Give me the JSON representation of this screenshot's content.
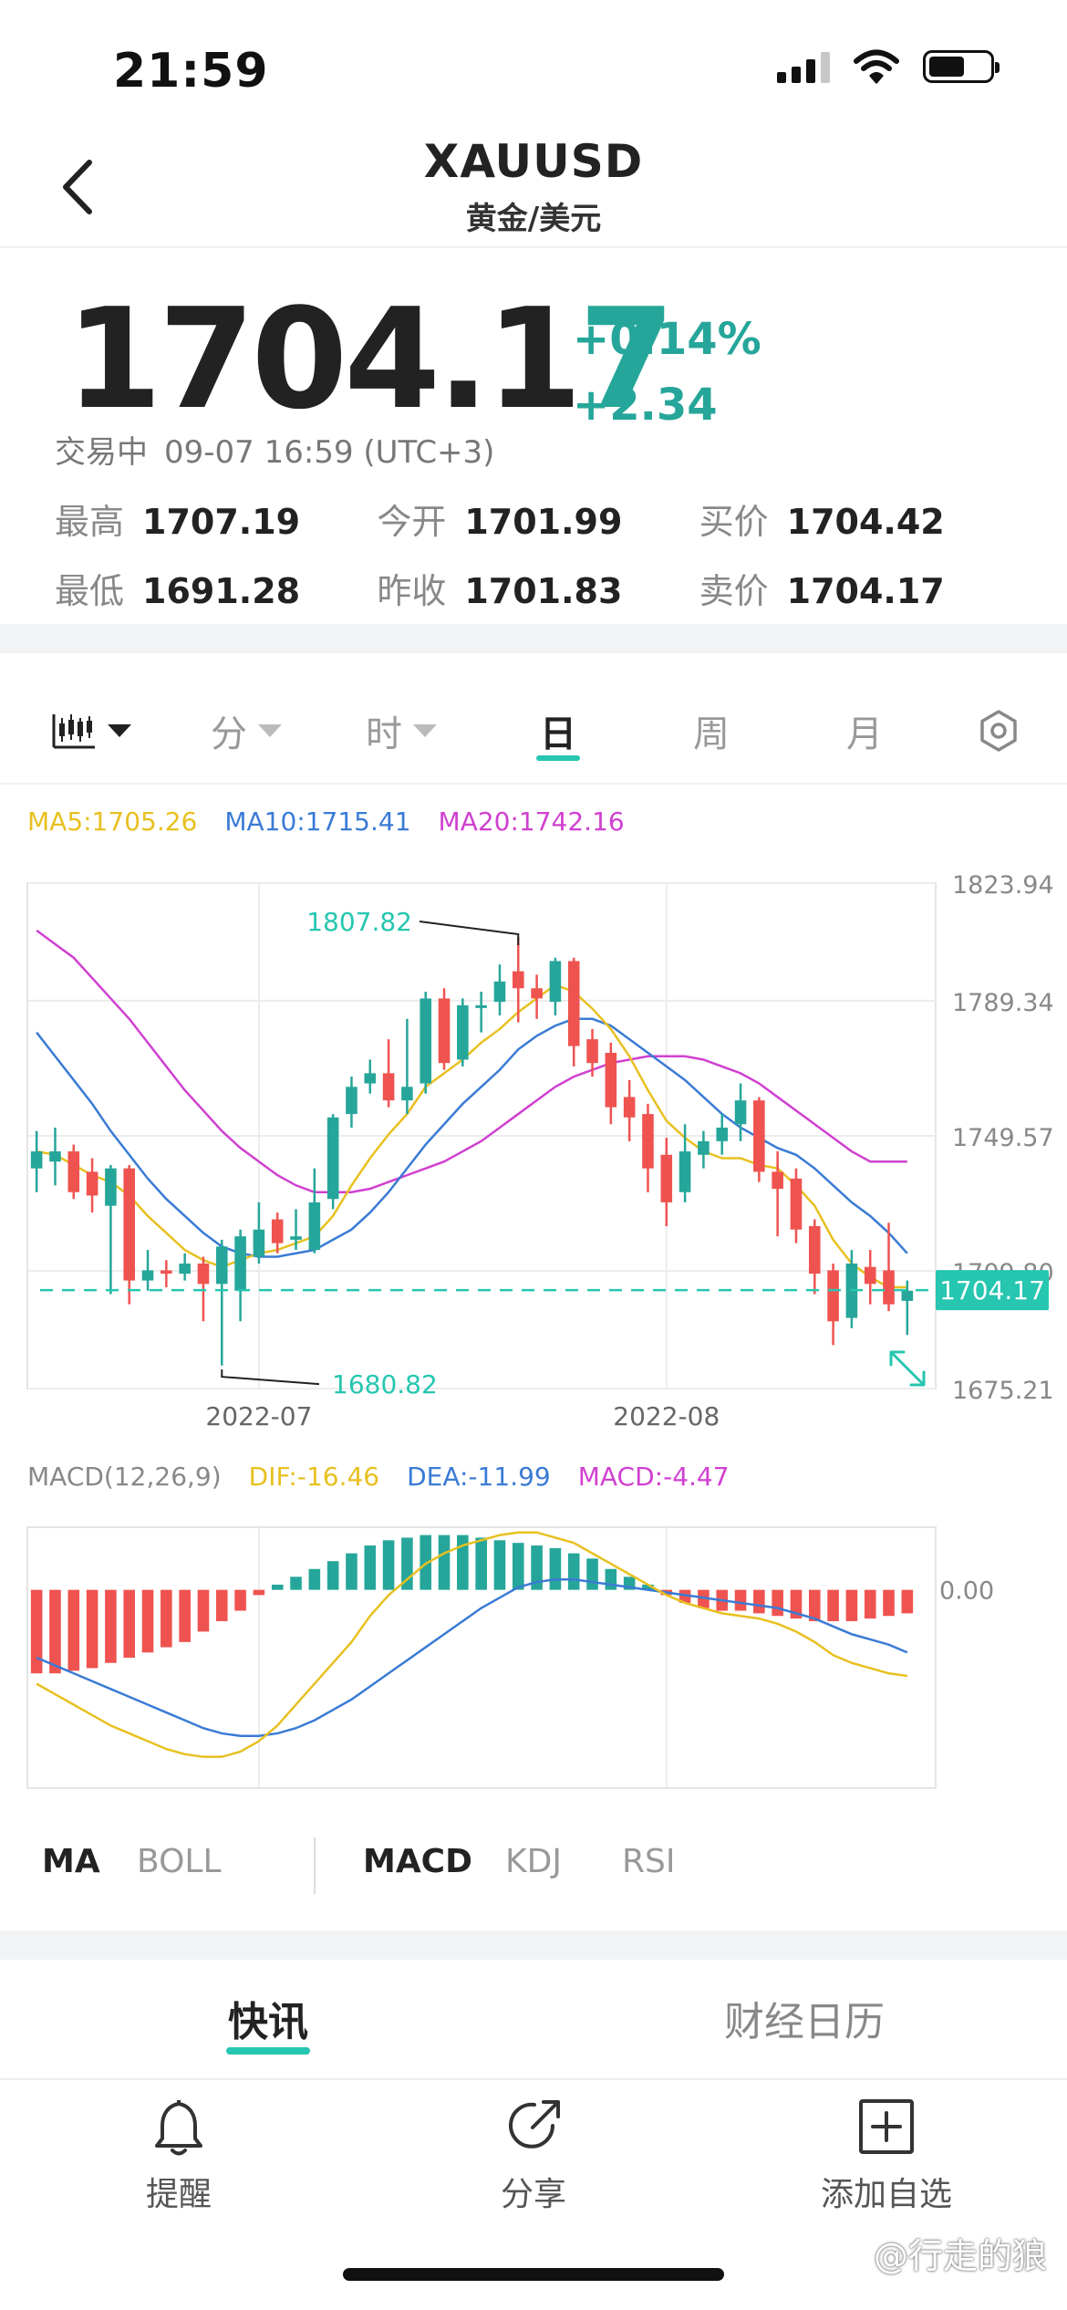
{
  "status_bar": {
    "time": "21:59"
  },
  "header": {
    "title": "XAUUSD",
    "subtitle": "黄金/美元"
  },
  "quote": {
    "price_main": "1704.1",
    "price_last": "7",
    "change_pct": "+0.14%",
    "change_abs": "+2.34",
    "status": "交易中",
    "datetime": "09-07 16:59 (UTC+3)",
    "stats": [
      [
        {
          "label": "最高",
          "value": "1707.19"
        },
        {
          "label": "今开",
          "value": "1701.99"
        },
        {
          "label": "买价",
          "value": "1704.42"
        }
      ],
      [
        {
          "label": "最低",
          "value": "1691.28"
        },
        {
          "label": "昨收",
          "value": "1701.83"
        },
        {
          "label": "卖价",
          "value": "1704.17"
        }
      ]
    ]
  },
  "period_tabs": [
    "分",
    "时",
    "日",
    "周",
    "月"
  ],
  "active_period": "日",
  "ma_legend": [
    {
      "text": "MA5:1705.26",
      "color": "#e8c020"
    },
    {
      "text": "MA10:1715.41",
      "color": "#3a7bd5"
    },
    {
      "text": "MA20:1742.16",
      "color": "#d040d0"
    }
  ],
  "chart_data": [
    {
      "type": "candlestick",
      "title": "",
      "y_ticks": [
        "1823.94",
        "1789.34",
        "1749.57",
        "1709.80",
        "1675.21"
      ],
      "x_ticks": [
        "2022-07",
        "2022-08"
      ],
      "ylim": [
        1675.21,
        1823.94
      ],
      "current_price_label": "1704.17",
      "annotations": [
        {
          "text": "1807.82",
          "value": 1807.82
        },
        {
          "text": "1680.82",
          "value": 1680.82
        }
      ],
      "candles": [
        {
          "o": 1740,
          "c": 1745,
          "h": 1751,
          "l": 1733
        },
        {
          "o": 1742,
          "c": 1745,
          "h": 1752,
          "l": 1735
        },
        {
          "o": 1745,
          "c": 1733,
          "h": 1747,
          "l": 1731
        },
        {
          "o": 1739,
          "c": 1732,
          "h": 1743,
          "l": 1727
        },
        {
          "o": 1729,
          "c": 1740,
          "h": 1741,
          "l": 1703
        },
        {
          "o": 1740,
          "c": 1707,
          "h": 1741,
          "l": 1700
        },
        {
          "o": 1707,
          "c": 1710,
          "h": 1716,
          "l": 1704
        },
        {
          "o": 1710,
          "c": 1709,
          "h": 1713,
          "l": 1705
        },
        {
          "o": 1709,
          "c": 1712,
          "h": 1715,
          "l": 1707
        },
        {
          "o": 1712,
          "c": 1706,
          "h": 1714,
          "l": 1695
        },
        {
          "o": 1706,
          "c": 1717,
          "h": 1719,
          "l": 1682
        },
        {
          "o": 1704,
          "c": 1720,
          "h": 1722,
          "l": 1695
        },
        {
          "o": 1714,
          "c": 1722,
          "h": 1730,
          "l": 1712
        },
        {
          "o": 1725,
          "c": 1718,
          "h": 1727,
          "l": 1715
        },
        {
          "o": 1719,
          "c": 1720,
          "h": 1728,
          "l": 1716
        },
        {
          "o": 1716,
          "c": 1730,
          "h": 1740,
          "l": 1715
        },
        {
          "o": 1731,
          "c": 1755,
          "h": 1756,
          "l": 1728
        },
        {
          "o": 1756,
          "c": 1764,
          "h": 1767,
          "l": 1752
        },
        {
          "o": 1765,
          "c": 1768,
          "h": 1772,
          "l": 1762
        },
        {
          "o": 1768,
          "c": 1760,
          "h": 1778,
          "l": 1758
        },
        {
          "o": 1760,
          "c": 1764,
          "h": 1784,
          "l": 1756
        },
        {
          "o": 1765,
          "c": 1790,
          "h": 1792,
          "l": 1762
        },
        {
          "o": 1790,
          "c": 1771,
          "h": 1793,
          "l": 1769
        },
        {
          "o": 1772,
          "c": 1788,
          "h": 1790,
          "l": 1770
        },
        {
          "o": 1788,
          "c": 1788,
          "h": 1792,
          "l": 1780
        },
        {
          "o": 1789,
          "c": 1795,
          "h": 1800,
          "l": 1785
        },
        {
          "o": 1798,
          "c": 1793,
          "h": 1808,
          "l": 1783
        },
        {
          "o": 1793,
          "c": 1790,
          "h": 1797,
          "l": 1784
        },
        {
          "o": 1789,
          "c": 1801,
          "h": 1802,
          "l": 1785
        },
        {
          "o": 1801,
          "c": 1776,
          "h": 1802,
          "l": 1770
        },
        {
          "o": 1778,
          "c": 1771,
          "h": 1781,
          "l": 1767
        },
        {
          "o": 1774,
          "c": 1758,
          "h": 1777,
          "l": 1753
        },
        {
          "o": 1761,
          "c": 1755,
          "h": 1766,
          "l": 1748
        },
        {
          "o": 1756,
          "c": 1740,
          "h": 1759,
          "l": 1733
        },
        {
          "o": 1744,
          "c": 1730,
          "h": 1749,
          "l": 1723
        },
        {
          "o": 1733,
          "c": 1745,
          "h": 1753,
          "l": 1730
        },
        {
          "o": 1744,
          "c": 1748,
          "h": 1751,
          "l": 1740
        },
        {
          "o": 1748,
          "c": 1752,
          "h": 1756,
          "l": 1744
        },
        {
          "o": 1753,
          "c": 1760,
          "h": 1765,
          "l": 1748
        },
        {
          "o": 1760,
          "c": 1739,
          "h": 1761,
          "l": 1736
        },
        {
          "o": 1739,
          "c": 1734,
          "h": 1745,
          "l": 1720
        },
        {
          "o": 1737,
          "c": 1722,
          "h": 1740,
          "l": 1718
        },
        {
          "o": 1723,
          "c": 1709,
          "h": 1725,
          "l": 1703
        },
        {
          "o": 1710,
          "c": 1695,
          "h": 1712,
          "l": 1688
        },
        {
          "o": 1696,
          "c": 1712,
          "h": 1716,
          "l": 1693
        },
        {
          "o": 1711,
          "c": 1706,
          "h": 1716,
          "l": 1700
        },
        {
          "o": 1710,
          "c": 1700,
          "h": 1724,
          "l": 1698
        },
        {
          "o": 1701,
          "c": 1704,
          "h": 1707,
          "l": 1691
        }
      ],
      "ma5": [
        1745,
        1744,
        1741,
        1738,
        1736,
        1732,
        1726,
        1721,
        1716,
        1713,
        1711,
        1713,
        1715,
        1716,
        1718,
        1720,
        1726,
        1735,
        1743,
        1750,
        1756,
        1764,
        1768,
        1772,
        1777,
        1781,
        1786,
        1790,
        1794,
        1792,
        1787,
        1781,
        1773,
        1763,
        1754,
        1749,
        1745,
        1743,
        1743,
        1741,
        1740,
        1735,
        1729,
        1719,
        1712,
        1708,
        1705,
        1705
      ],
      "ma10": [
        1780,
        1773,
        1766,
        1759,
        1751,
        1744,
        1737,
        1731,
        1726,
        1721,
        1717,
        1715,
        1714,
        1714,
        1715,
        1716,
        1719,
        1722,
        1727,
        1733,
        1740,
        1747,
        1753,
        1759,
        1764,
        1769,
        1775,
        1779,
        1782,
        1784,
        1784,
        1782,
        1778,
        1774,
        1770,
        1766,
        1761,
        1756,
        1752,
        1749,
        1746,
        1744,
        1740,
        1735,
        1730,
        1726,
        1721,
        1715
      ],
      "ma20": [
        1810,
        1806,
        1802,
        1796,
        1790,
        1784,
        1777,
        1770,
        1763,
        1757,
        1751,
        1746,
        1742,
        1738,
        1735,
        1733,
        1733,
        1733,
        1734,
        1736,
        1738,
        1740,
        1742,
        1745,
        1748,
        1752,
        1756,
        1760,
        1764,
        1767,
        1769,
        1771,
        1772,
        1773,
        1773,
        1773,
        1772,
        1770,
        1768,
        1765,
        1761,
        1757,
        1753,
        1749,
        1745,
        1742,
        1742,
        1742
      ]
    },
    {
      "type": "bar",
      "title": "",
      "y_ticks": [
        "0.00"
      ],
      "x_ticks": [
        "2022-07",
        "2022-08"
      ],
      "ylim": [
        -38,
        12
      ],
      "macd_hist": [
        -16,
        -16,
        -15.5,
        -15,
        -14,
        -13,
        -12,
        -11,
        -10,
        -8,
        -6,
        -4,
        -1,
        1,
        2.5,
        4,
        5.5,
        7,
        8.5,
        9.5,
        10,
        10.5,
        10.5,
        10.5,
        10,
        9.5,
        9,
        8.5,
        8,
        7,
        6,
        4,
        2.5,
        1,
        -1,
        -2.5,
        -3.5,
        -4,
        -4,
        -4.5,
        -5,
        -5.5,
        -6,
        -6,
        -6,
        -5.5,
        -5,
        -4.5
      ],
      "dif": [
        -18,
        -20,
        -22,
        -24,
        -26,
        -27.5,
        -29,
        -30.5,
        -31.5,
        -32,
        -32,
        -31,
        -29,
        -26,
        -22,
        -18,
        -14,
        -10,
        -5,
        -1,
        2,
        5,
        7,
        8.5,
        9.5,
        10.5,
        11,
        11,
        10,
        9,
        7,
        5,
        3,
        1,
        -1,
        -2.5,
        -3.5,
        -4.5,
        -5,
        -5.5,
        -6.5,
        -8,
        -10,
        -12.5,
        -14,
        -15,
        -16,
        -16.5
      ],
      "dea": [
        -13,
        -14.5,
        -16,
        -17.5,
        -19,
        -20.5,
        -22,
        -23.5,
        -25,
        -26.5,
        -27.5,
        -28,
        -28,
        -27.5,
        -26.5,
        -25,
        -23,
        -21,
        -18.5,
        -16,
        -13.5,
        -11,
        -8.5,
        -6,
        -3.5,
        -1.5,
        0.5,
        1.5,
        2,
        2,
        1.5,
        1,
        0.5,
        0,
        -0.5,
        -1,
        -1.5,
        -2,
        -2.5,
        -3,
        -3.5,
        -4.5,
        -5.5,
        -7,
        -8.5,
        -9.5,
        -10.5,
        -12
      ]
    }
  ],
  "macd_legend": [
    {
      "text": "MACD(12,26,9)",
      "color": "#888888"
    },
    {
      "text": "DIF:-16.46",
      "color": "#e8c020"
    },
    {
      "text": "DEA:-11.99",
      "color": "#3a7bd5"
    },
    {
      "text": "MACD:-4.47",
      "color": "#d040d0"
    }
  ],
  "indicators": {
    "main": [
      {
        "label": "MA",
        "active": true
      },
      {
        "label": "BOLL",
        "active": false
      }
    ],
    "sub": [
      {
        "label": "MACD",
        "active": true
      },
      {
        "label": "KDJ",
        "active": false
      },
      {
        "label": "RSI",
        "active": false
      }
    ]
  },
  "news_tabs": [
    "快讯",
    "财经日历"
  ],
  "bottom_nav": [
    "提醒",
    "分享",
    "添加自选"
  ],
  "watermark": "@行走的狼",
  "colors": {
    "up": "#26a69a",
    "down": "#ef5350",
    "accent": "#26c6b0",
    "ma5": "#e8c020",
    "ma10": "#3a7bd5",
    "ma20": "#d040d0"
  }
}
